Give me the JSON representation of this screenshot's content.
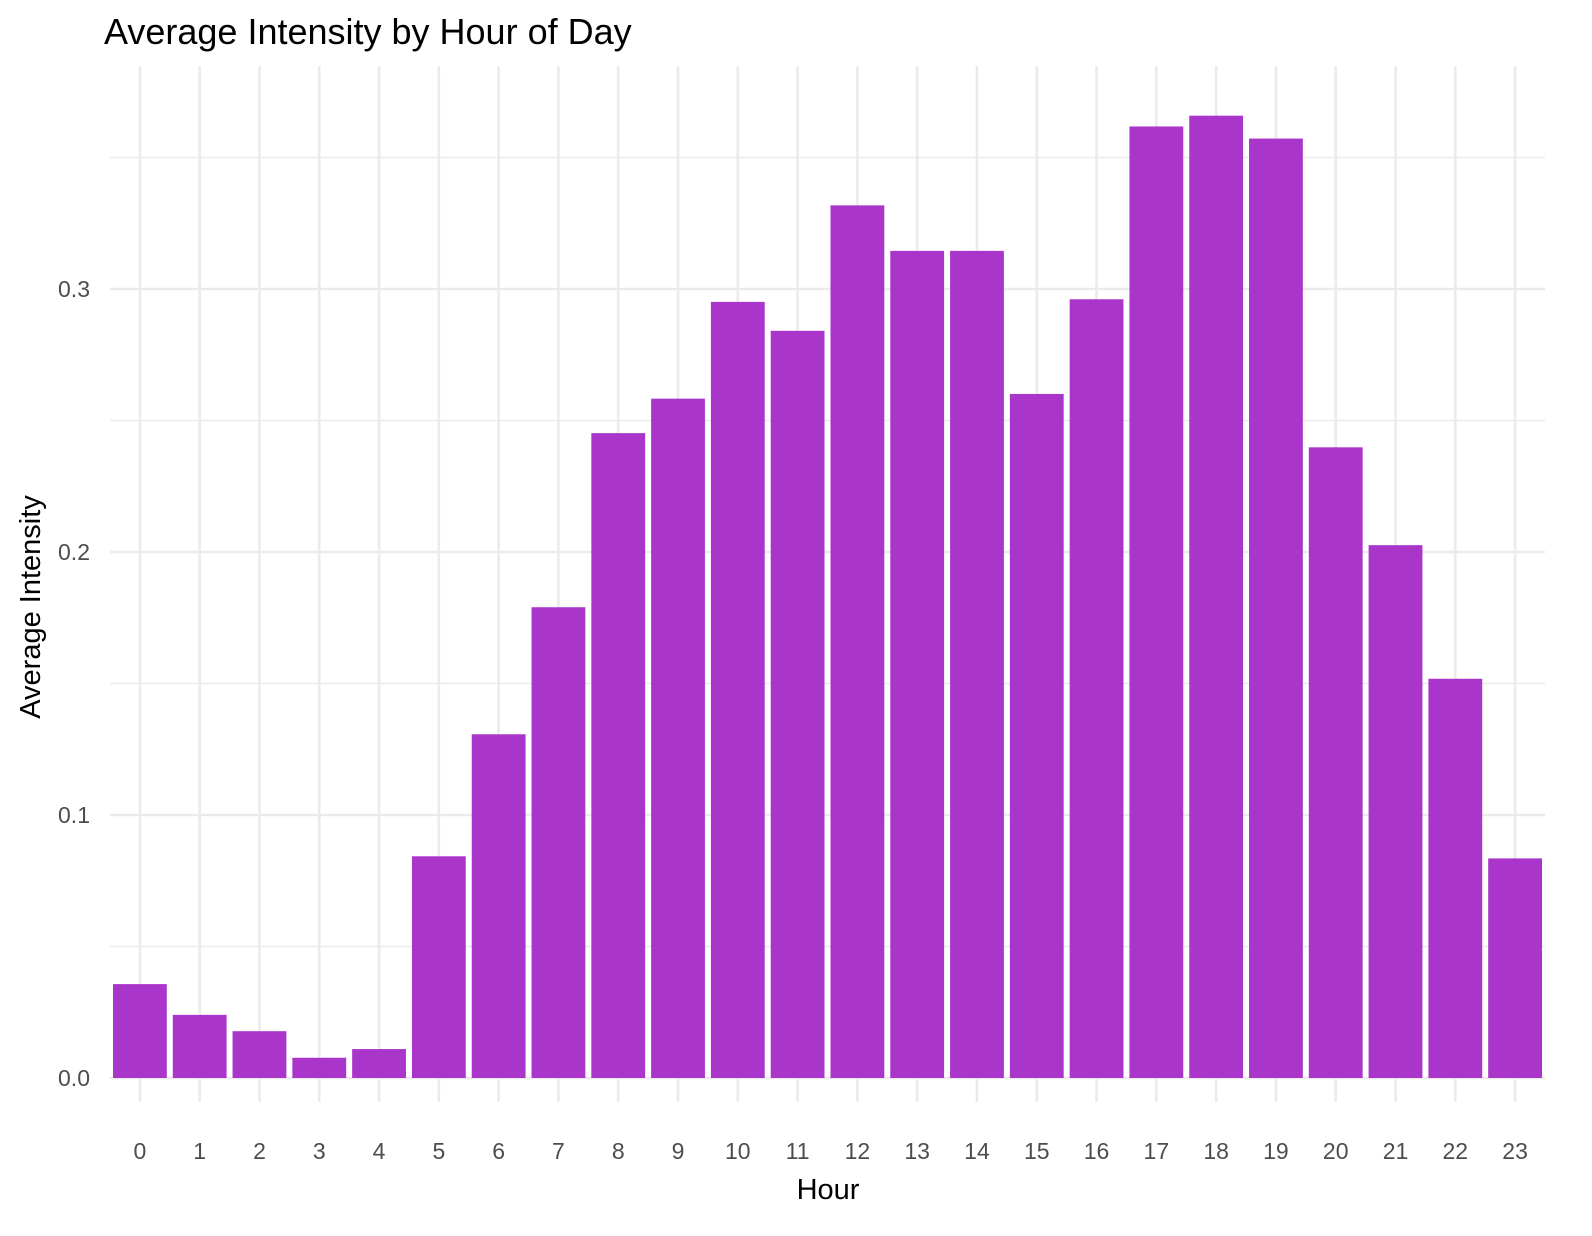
{
  "chart_data": {
    "type": "bar",
    "title": "Average Intensity by Hour of Day",
    "xlabel": "Hour",
    "ylabel": "Average Intensity",
    "categories": [
      "0",
      "1",
      "2",
      "3",
      "4",
      "5",
      "6",
      "7",
      "8",
      "9",
      "10",
      "11",
      "12",
      "13",
      "14",
      "15",
      "16",
      "17",
      "18",
      "19",
      "20",
      "21",
      "22",
      "23"
    ],
    "values": [
      0.0357,
      0.024,
      0.0178,
      0.0077,
      0.011,
      0.0843,
      0.1307,
      0.179,
      0.2452,
      0.2583,
      0.2951,
      0.2841,
      0.3318,
      0.3145,
      0.3145,
      0.2601,
      0.2961,
      0.3618,
      0.3659,
      0.3572,
      0.2398,
      0.2026,
      0.1518,
      0.0835
    ],
    "ylim": [
      0,
      0.38
    ],
    "yticks": [
      0.0,
      0.1,
      0.2,
      0.3
    ],
    "ytick_labels": [
      "0.0",
      "0.1",
      "0.2",
      "0.3"
    ],
    "bar_color": "#aa35cb",
    "grid": true,
    "legend": "none"
  }
}
